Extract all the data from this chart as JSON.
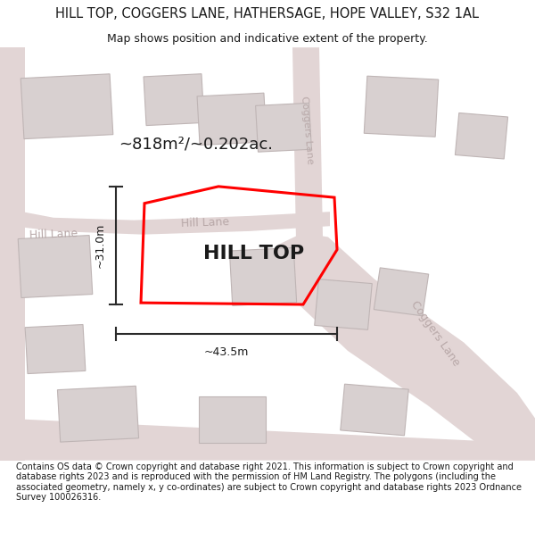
{
  "title": "HILL TOP, COGGERS LANE, HATHERSAGE, HOPE VALLEY, S32 1AL",
  "subtitle": "Map shows position and indicative extent of the property.",
  "footer": "Contains OS data © Crown copyright and database right 2021. This information is subject to Crown copyright and database rights 2023 and is reproduced with the permission of HM Land Registry. The polygons (including the associated geometry, namely x, y co-ordinates) are subject to Crown copyright and database rights 2023 Ordnance Survey 100026316.",
  "bg_color": "#ffffff",
  "map_bg": "#f2eded",
  "road_fill": "#e2d5d5",
  "building_fill": "#d8d0d0",
  "building_edge": "#bfb5b5",
  "road_label_color": "#b8a8a8",
  "property_edge": "#ff0000",
  "property_label": "HILL TOP",
  "area_label": "~818m²/~0.202ac.",
  "width_label": "~43.5m",
  "height_label": "~31.0m",
  "dim_color": "#2a2a2a",
  "figsize": [
    6.0,
    6.25
  ],
  "dpi": 100,
  "title_fontsize": 10.5,
  "subtitle_fontsize": 9,
  "footer_fontsize": 7.0
}
